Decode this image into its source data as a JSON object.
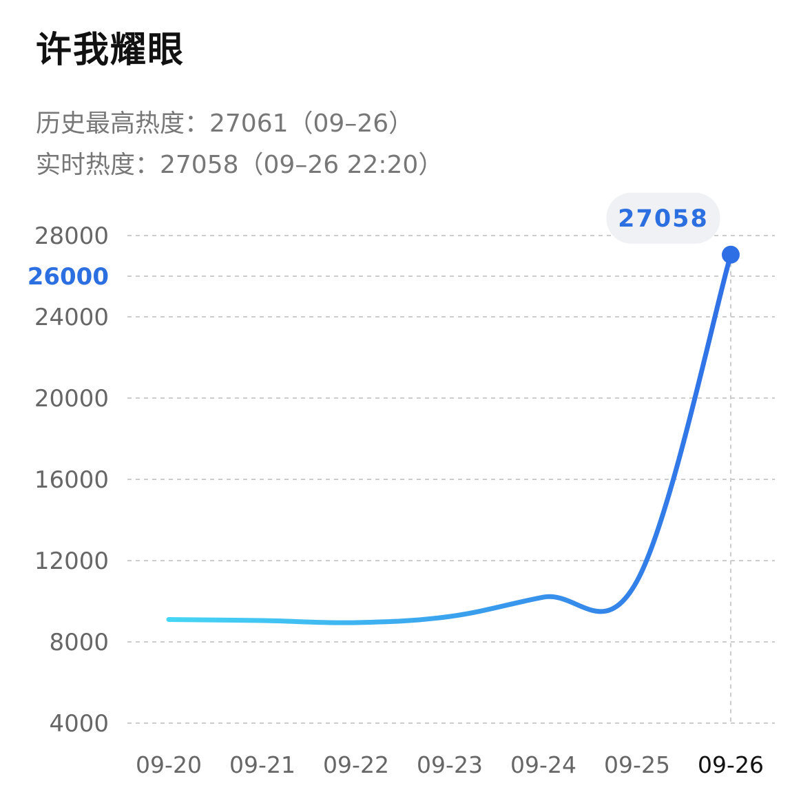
{
  "title": "许我耀眼",
  "stats": {
    "historical_max": "历史最高热度：27061（09–26）",
    "realtime": "实时热度：27058（09–26 22:20）"
  },
  "colors": {
    "line_start": "#46d6f5",
    "line_end": "#2f6fe6",
    "highlight": "#2c6fe0",
    "grid": "#cccccc"
  },
  "chart_data": {
    "type": "line",
    "categories": [
      "09-20",
      "09-21",
      "09-22",
      "09-23",
      "09-24",
      "09-25",
      "09-26"
    ],
    "values": [
      9100,
      9050,
      8950,
      9250,
      10200,
      11000,
      27058
    ],
    "y_ticks": [
      4000,
      8000,
      12000,
      16000,
      20000,
      24000,
      26000,
      28000
    ],
    "highlight_y_tick": 26000,
    "highlight_category": "09-26",
    "marker_label": "27058",
    "ylim": [
      4000,
      28000
    ],
    "grid": true,
    "title": "",
    "xlabel": "",
    "ylabel": ""
  }
}
